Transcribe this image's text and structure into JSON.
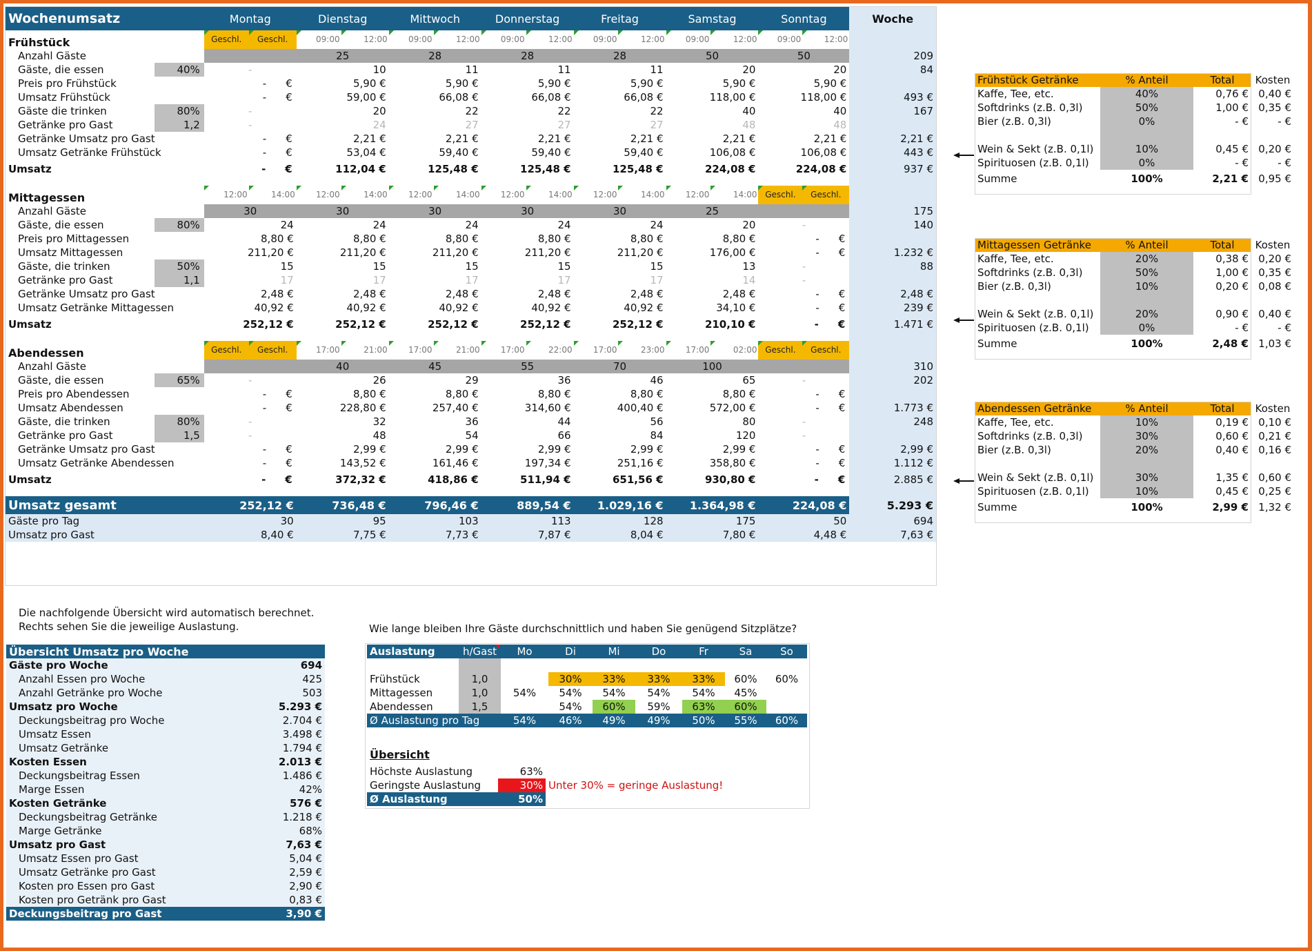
{
  "title": "Wochenumsatz",
  "days": [
    "Montag",
    "Dienstag",
    "Mittwoch",
    "Donnerstag",
    "Freitag",
    "Samstag",
    "Sonntag"
  ],
  "week_label": "Woche",
  "fruehstueck": {
    "name": "Frühstück",
    "times": [
      "Geschl.",
      "Geschl.",
      "09:00",
      "12:00",
      "09:00",
      "12:00",
      "09:00",
      "12:00",
      "09:00",
      "12:00",
      "09:00",
      "12:00",
      "09:00",
      "12:00"
    ],
    "guests": [
      "",
      "25",
      "28",
      "28",
      "28",
      "50",
      "50"
    ],
    "guests_week": "209",
    "eat_pct": "40%",
    "eat_label": "Gäste, die essen",
    "eat": [
      "-",
      "10",
      "11",
      "11",
      "11",
      "20",
      "20"
    ],
    "eat_week": "84",
    "price_label": "Preis pro Frühstück",
    "price": [
      "-",
      "5,90 €",
      "5,90 €",
      "5,90 €",
      "5,90 €",
      "5,90 €",
      "5,90 €"
    ],
    "rev_label": "Umsatz Frühstück",
    "rev": [
      "-",
      "59,00 €",
      "66,08 €",
      "66,08 €",
      "66,08 €",
      "118,00 €",
      "118,00 €"
    ],
    "rev_week": "493 €",
    "drink_pct": "80%",
    "drink_label": "Gäste die trinken",
    "drink": [
      "-",
      "20",
      "22",
      "22",
      "22",
      "40",
      "40"
    ],
    "drink_week": "167",
    "per_guest_val": "1,2",
    "per_guest_label": "Getränke pro Gast",
    "per_guest": [
      "-",
      "24",
      "27",
      "27",
      "27",
      "48",
      "48"
    ],
    "drev_pg_label": "Getränke Umsatz pro Gast",
    "drev_pg": [
      "-",
      "2,21 €",
      "2,21 €",
      "2,21 €",
      "2,21 €",
      "2,21 €",
      "2,21 €"
    ],
    "drev_pg_week": "2,21 €",
    "drev_label": "Umsatz Getränke Frühstück",
    "drev": [
      "-",
      "53,04 €",
      "59,40 €",
      "59,40 €",
      "59,40 €",
      "106,08 €",
      "106,08 €"
    ],
    "drev_week": "443 €",
    "total": [
      "-",
      "112,04 €",
      "125,48 €",
      "125,48 €",
      "125,48 €",
      "224,08 €",
      "224,08 €"
    ],
    "total_week": "937 €"
  },
  "mittag": {
    "name": "Mittagessen",
    "times": [
      "12:00",
      "14:00",
      "12:00",
      "14:00",
      "12:00",
      "14:00",
      "12:00",
      "14:00",
      "12:00",
      "14:00",
      "12:00",
      "14:00",
      "Geschl.",
      "Geschl."
    ],
    "guests": [
      "30",
      "30",
      "30",
      "30",
      "30",
      "25",
      ""
    ],
    "guests_week": "175",
    "eat_pct": "80%",
    "eat_label": "Gäste, die essen",
    "eat": [
      "24",
      "24",
      "24",
      "24",
      "24",
      "20",
      "-"
    ],
    "eat_week": "140",
    "price_label": "Preis pro Mittagessen",
    "price": [
      "8,80 €",
      "8,80 €",
      "8,80 €",
      "8,80 €",
      "8,80 €",
      "8,80 €",
      "-"
    ],
    "rev_label": "Umsatz Mittagessen",
    "rev": [
      "211,20 €",
      "211,20 €",
      "211,20 €",
      "211,20 €",
      "211,20 €",
      "176,00 €",
      "-"
    ],
    "rev_week": "1.232 €",
    "drink_pct": "50%",
    "drink_label": "Gäste, die trinken",
    "drink": [
      "15",
      "15",
      "15",
      "15",
      "15",
      "13",
      "-"
    ],
    "drink_week": "88",
    "per_guest_val": "1,1",
    "per_guest_label": "Getränke pro Gast",
    "per_guest": [
      "17",
      "17",
      "17",
      "17",
      "17",
      "14",
      "-"
    ],
    "drev_pg_label": "Getränke Umsatz pro Gast",
    "drev_pg": [
      "2,48 €",
      "2,48 €",
      "2,48 €",
      "2,48 €",
      "2,48 €",
      "2,48 €",
      "-"
    ],
    "drev_pg_week": "2,48 €",
    "drev_label": "Umsatz Getränke Mittagessen",
    "drev": [
      "40,92 €",
      "40,92 €",
      "40,92 €",
      "40,92 €",
      "40,92 €",
      "34,10 €",
      "-"
    ],
    "drev_week": "239 €",
    "total": [
      "252,12 €",
      "252,12 €",
      "252,12 €",
      "252,12 €",
      "252,12 €",
      "210,10 €",
      "-"
    ],
    "total_week": "1.471 €"
  },
  "abend": {
    "name": "Abendessen",
    "times": [
      "Geschl.",
      "Geschl.",
      "17:00",
      "21:00",
      "17:00",
      "21:00",
      "17:00",
      "22:00",
      "17:00",
      "23:00",
      "17:00",
      "02:00",
      "Geschl.",
      "Geschl."
    ],
    "guests": [
      "",
      "40",
      "45",
      "55",
      "70",
      "100",
      ""
    ],
    "guests_week": "310",
    "eat_pct": "65%",
    "eat_label": "Gäste, die essen",
    "eat": [
      "-",
      "26",
      "29",
      "36",
      "46",
      "65",
      "-"
    ],
    "eat_week": "202",
    "price_label": "Preis pro Abendessen",
    "price": [
      "-",
      "8,80 €",
      "8,80 €",
      "8,80 €",
      "8,80 €",
      "8,80 €",
      "-"
    ],
    "rev_label": "Umsatz Abendessen",
    "rev": [
      "-",
      "228,80 €",
      "257,40 €",
      "314,60 €",
      "400,40 €",
      "572,00 €",
      "-"
    ],
    "rev_week": "1.773 €",
    "drink_pct": "80%",
    "drink_label": "Gäste, die trinken",
    "drink": [
      "-",
      "32",
      "36",
      "44",
      "56",
      "80",
      "-"
    ],
    "drink_week": "248",
    "per_guest_val": "1,5",
    "per_guest_label": "Getränke pro Gast",
    "per_guest": [
      "-",
      "48",
      "54",
      "66",
      "84",
      "120",
      "-"
    ],
    "drev_pg_label": "Getränke Umsatz pro Gast",
    "drev_pg": [
      "-",
      "2,99 €",
      "2,99 €",
      "2,99 €",
      "2,99 €",
      "2,99 €",
      "-"
    ],
    "drev_pg_week": "2,99 €",
    "drev_label": "Umsatz Getränke Abendessen",
    "drev": [
      "-",
      "143,52 €",
      "161,46 €",
      "197,34 €",
      "251,16 €",
      "358,80 €",
      "-"
    ],
    "drev_week": "1.112 €",
    "total": [
      "-",
      "372,32 €",
      "418,86 €",
      "511,94 €",
      "651,56 €",
      "930,80 €",
      "-"
    ],
    "total_week": "2.885 €"
  },
  "labels": {
    "anzahl_gaeste": "Anzahl Gäste",
    "umsatz": "Umsatz",
    "euro": "€"
  },
  "gesamt": {
    "label": "Umsatz gesamt",
    "values": [
      "252,12 €",
      "736,48 €",
      "796,46 €",
      "889,54 €",
      "1.029,16 €",
      "1.364,98 €",
      "224,08 €"
    ],
    "week": "5.293 €",
    "guests_label": "Gäste pro Tag",
    "guests": [
      "30",
      "95",
      "103",
      "113",
      "128",
      "175",
      "50"
    ],
    "guests_week": "694",
    "per_guest_label": "Umsatz pro Gast",
    "per_guest": [
      "8,40 €",
      "7,75 €",
      "7,73 €",
      "7,87 €",
      "8,04 €",
      "7,80 €",
      "4,48 €"
    ],
    "per_guest_week": "7,63 €"
  },
  "drinks": {
    "col_pct": "% Anteil",
    "col_total": "Total",
    "col_cost": "Kosten",
    "sum_label": "Summe",
    "items": [
      "Kaffe, Tee, etc.",
      "Softdrinks (z.B. 0,3l)",
      "Bier (z.B. 0,3l)",
      "Wein & Sekt (z.B. 0,1l)",
      "Spirituosen (z.B. 0,1l)"
    ],
    "fruehstueck": {
      "title": "Frühstück Getränke",
      "pct": [
        "40%",
        "50%",
        "0%",
        "10%",
        "0%"
      ],
      "total": [
        "0,76 €",
        "1,00 €",
        "- €",
        "0,45 €",
        "- €"
      ],
      "cost": [
        "0,40 €",
        "0,35 €",
        "- €",
        "0,20 €",
        "- €"
      ],
      "sum_pct": "100%",
      "sum_total": "2,21 €",
      "sum_cost": "0,95 €"
    },
    "mittag": {
      "title": "Mittagessen Getränke",
      "pct": [
        "20%",
        "50%",
        "10%",
        "20%",
        "0%"
      ],
      "total": [
        "0,38 €",
        "1,00 €",
        "0,20 €",
        "0,90 €",
        "- €"
      ],
      "cost": [
        "0,20 €",
        "0,35 €",
        "0,08 €",
        "0,40 €",
        "- €"
      ],
      "sum_pct": "100%",
      "sum_total": "2,48 €",
      "sum_cost": "1,03 €"
    },
    "abend": {
      "title": "Abendessen Getränke",
      "pct": [
        "10%",
        "30%",
        "20%",
        "30%",
        "10%"
      ],
      "total": [
        "0,19 €",
        "0,60 €",
        "0,40 €",
        "1,35 €",
        "0,45 €"
      ],
      "cost": [
        "0,10 €",
        "0,21 €",
        "0,16 €",
        "0,60 €",
        "0,25 €"
      ],
      "sum_pct": "100%",
      "sum_total": "2,99 €",
      "sum_cost": "1,32 €"
    }
  },
  "note": {
    "line1": "Die nachfolgende Übersicht wird automatisch berechnet.",
    "line2": "Rechts sehen Sie die jeweilige Auslastung."
  },
  "overview": {
    "title": "Übersicht Umsatz pro Woche",
    "rows": [
      {
        "label": "Gäste pro Woche",
        "value": "694",
        "bold": true
      },
      {
        "label": "Anzahl Essen pro Woche",
        "value": "425"
      },
      {
        "label": "Anzahl Getränke pro Woche",
        "value": "503"
      },
      {
        "label": "Umsatz pro Woche",
        "value": "5.293 €",
        "bold": true
      },
      {
        "label": "Deckungsbeitrag pro Woche",
        "value": "2.704 €"
      },
      {
        "label": "Umsatz Essen",
        "value": "3.498 €"
      },
      {
        "label": "Umsatz Getränke",
        "value": "1.794 €"
      },
      {
        "label": "Kosten Essen",
        "value": "2.013 €",
        "bold": true
      },
      {
        "label": "Deckungsbeitrag Essen",
        "value": "1.486 €"
      },
      {
        "label": "Marge Essen",
        "value": "42%"
      },
      {
        "label": "Kosten Getränke",
        "value": "576 €",
        "bold": true
      },
      {
        "label": "Deckungsbeitrag Getränke",
        "value": "1.218 €"
      },
      {
        "label": "Marge Getränke",
        "value": "68%"
      },
      {
        "label": "Umsatz pro Gast",
        "value": "7,63 €",
        "bold": true
      },
      {
        "label": "Umsatz Essen pro Gast",
        "value": "5,04 €"
      },
      {
        "label": "Umsatz Getränke pro Gast",
        "value": "2,59 €"
      },
      {
        "label": "Kosten pro Essen pro Gast",
        "value": "2,90 €"
      },
      {
        "label": "Kosten pro Getränk pro Gast",
        "value": "0,83 €"
      }
    ],
    "last_label": "Deckungsbeitrag pro Gast",
    "last_value": "3,90 €"
  },
  "question": "Wie lange bleiben Ihre Gäste durchschnittlich und haben Sie genügend Sitzplätze?",
  "auslastung": {
    "title": "Auslastung",
    "hgast": "h/Gast",
    "days": [
      "Mo",
      "Di",
      "Mi",
      "Do",
      "Fr",
      "Sa",
      "So"
    ],
    "rows": [
      {
        "label": "Frühstück",
        "h": "1,0",
        "vals": [
          "",
          "30%",
          "33%",
          "33%",
          "33%",
          "60%",
          "60%"
        ],
        "col": [
          "",
          "y",
          "y",
          "y",
          "y",
          "",
          ""
        ]
      },
      {
        "label": "Mittagessen",
        "h": "1,0",
        "vals": [
          "54%",
          "54%",
          "54%",
          "54%",
          "54%",
          "45%",
          ""
        ],
        "col": [
          "",
          "",
          "",
          "",
          "",
          "",
          ""
        ]
      },
      {
        "label": "Abendessen",
        "h": "1,5",
        "vals": [
          "",
          "54%",
          "60%",
          "59%",
          "63%",
          "60%",
          ""
        ],
        "col": [
          "",
          "",
          "g",
          "",
          "g",
          "g",
          ""
        ]
      }
    ],
    "avg_label": "Ø Auslastung pro Tag",
    "avg": [
      "54%",
      "46%",
      "49%",
      "49%",
      "50%",
      "55%",
      "60%"
    ]
  },
  "uebersicht": {
    "title": "Übersicht",
    "max_label": "Höchste Auslastung",
    "max": "63%",
    "min_label": "Geringste Auslastung",
    "min": "30%",
    "warn": "Unter 30% = geringe Auslastung!",
    "avg_label": "Ø Auslastung",
    "avg": "50%"
  },
  "colors": {
    "header_blue": "#1a5f87",
    "week_col": "#dce9f5",
    "closed": "#f5b800",
    "input_grey": "#bfbfbf",
    "border": "#e8681e",
    "low": "#e8161b",
    "good": "#92d050"
  }
}
